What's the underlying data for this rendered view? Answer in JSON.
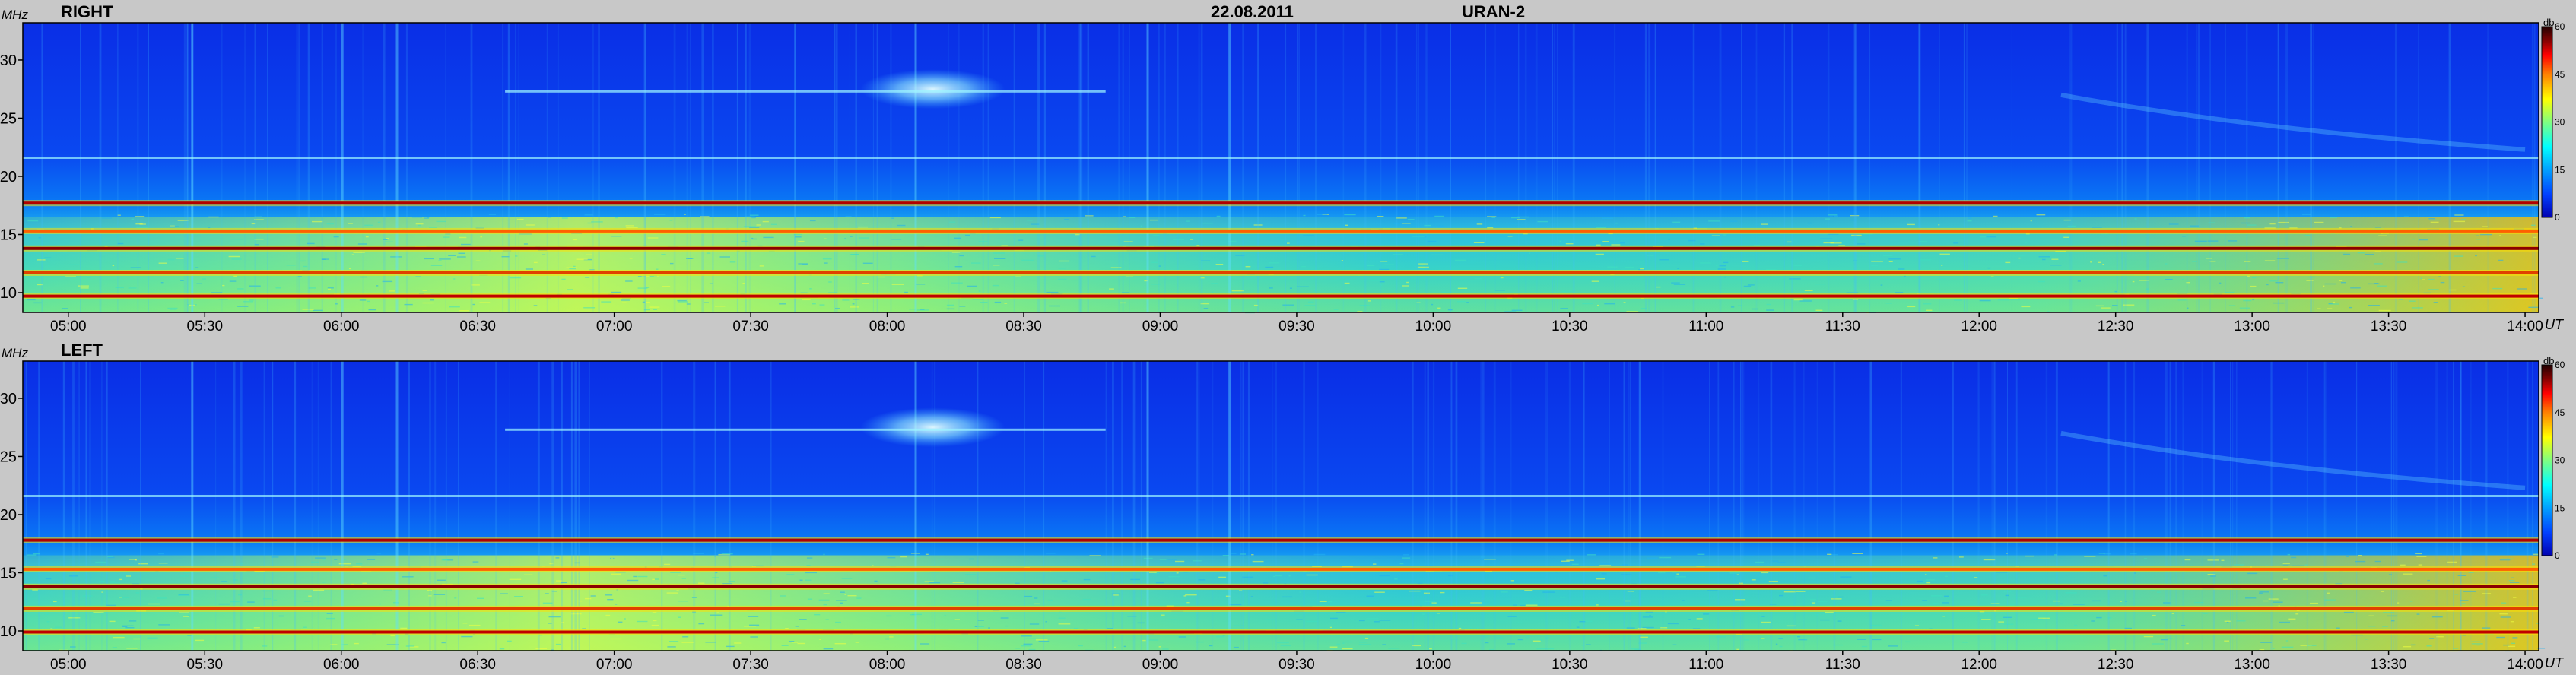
{
  "header": {
    "date": "22.08.2011",
    "instrument": "URAN-2"
  },
  "chart_data": {
    "type": "heatmap",
    "x_unit": "UT",
    "y_unit": "MHz",
    "colorbar": {
      "unit": "db",
      "ticks": [
        "0",
        "15",
        "30",
        "45",
        "60"
      ],
      "range": [
        0,
        60
      ],
      "colormap": [
        "#0000b0",
        "#0040ff",
        "#00a0ff",
        "#00ffff",
        "#80ff80",
        "#ffff00",
        "#ff8000",
        "#ff0000",
        "#800000",
        "#200000"
      ]
    },
    "x_ticks": [
      "05:00",
      "05:30",
      "06:00",
      "06:30",
      "07:00",
      "07:30",
      "08:00",
      "08:30",
      "09:00",
      "09:30",
      "10:00",
      "10:30",
      "11:00",
      "11:30",
      "12:00",
      "12:30",
      "13:00",
      "13:30",
      "14:00"
    ],
    "y_ticks": [
      "10",
      "15",
      "20",
      "25",
      "30"
    ],
    "panels": [
      {
        "label": "RIGHT",
        "narrowband_lines_mhz": [
          9.7,
          11.7,
          13.8,
          15.3,
          17.7
        ],
        "weak_lines_mhz": [
          21.6,
          27.3
        ],
        "diffuse_patch": {
          "time": "08:10",
          "freq_mhz": 27.5
        }
      },
      {
        "label": "LEFT",
        "narrowband_lines_mhz": [
          9.9,
          11.9,
          13.8,
          15.3,
          17.8
        ],
        "weak_lines_mhz": [
          21.6,
          27.3
        ],
        "diffuse_patch": {
          "time": "08:10",
          "freq_mhz": 27.5
        }
      }
    ]
  }
}
